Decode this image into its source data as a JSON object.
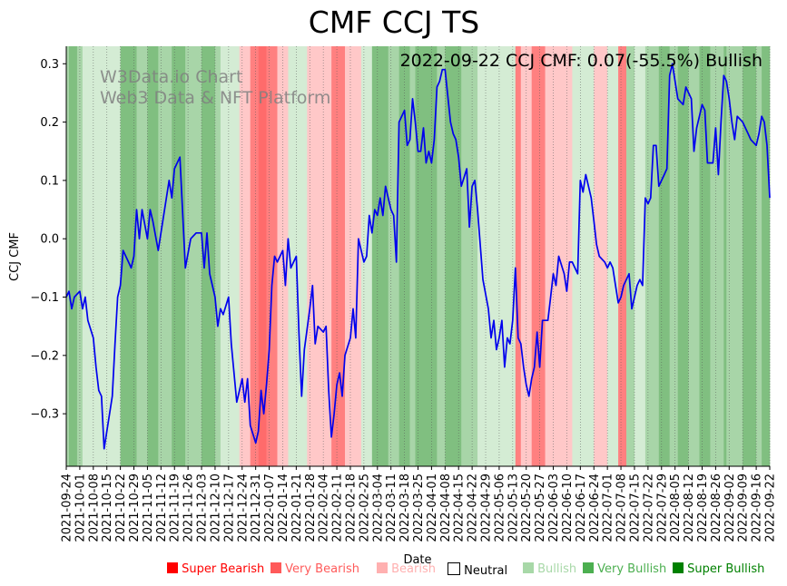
{
  "chart_data": {
    "type": "line",
    "title": "CMF CCJ TS",
    "xlabel": "Date",
    "ylabel": "CCJ CMF",
    "ylim": [
      -0.39,
      0.33
    ],
    "yticks": [
      -0.3,
      -0.2,
      -0.1,
      0.0,
      0.1,
      0.2,
      0.3
    ],
    "ytick_labels": [
      "−0.3",
      "−0.2",
      "−0.1",
      "0.0",
      "0.1",
      "0.2",
      "0.3"
    ],
    "x_start": "2021-09-24",
    "x_end": "2022-09-22",
    "xtick_labels": [
      "2021-09-24",
      "2021-10-01",
      "2021-10-08",
      "2021-10-15",
      "2021-10-22",
      "2021-10-29",
      "2021-11-05",
      "2021-11-12",
      "2021-11-19",
      "2021-11-26",
      "2021-12-03",
      "2021-12-10",
      "2021-12-17",
      "2021-12-24",
      "2021-12-31",
      "2022-01-07",
      "2022-01-14",
      "2022-01-21",
      "2022-01-28",
      "2022-02-04",
      "2022-02-11",
      "2022-02-18",
      "2022-02-25",
      "2022-03-04",
      "2022-03-11",
      "2022-03-18",
      "2022-03-25",
      "2022-04-01",
      "2022-04-08",
      "2022-04-15",
      "2022-04-22",
      "2022-04-29",
      "2022-05-06",
      "2022-05-13",
      "2022-05-20",
      "2022-05-27",
      "2022-06-03",
      "2022-06-10",
      "2022-06-17",
      "2022-06-24",
      "2022-07-01",
      "2022-07-08",
      "2022-07-15",
      "2022-07-22",
      "2022-07-29",
      "2022-08-05",
      "2022-08-12",
      "2022-08-19",
      "2022-08-26",
      "2022-09-02",
      "2022-09-09",
      "2022-09-16",
      "2022-09-22"
    ],
    "annotation": "2022-09-22 CCJ CMF: 0.07(-55.5%) Bullish",
    "watermark": [
      "W3Data.io Chart",
      "Web3 Data & NFT Platform"
    ],
    "line_color": "#0000ee",
    "series": [
      {
        "name": "CCJ CMF",
        "points": [
          [
            0,
            -0.1
          ],
          [
            1,
            -0.09
          ],
          [
            2,
            -0.12
          ],
          [
            3,
            -0.1
          ],
          [
            5,
            -0.09
          ],
          [
            6,
            -0.12
          ],
          [
            7,
            -0.1
          ],
          [
            8,
            -0.14
          ],
          [
            10,
            -0.17
          ],
          [
            11,
            -0.22
          ],
          [
            12,
            -0.26
          ],
          [
            13,
            -0.27
          ],
          [
            14,
            -0.36
          ],
          [
            16,
            -0.3
          ],
          [
            17,
            -0.27
          ],
          [
            18,
            -0.18
          ],
          [
            19,
            -0.1
          ],
          [
            20,
            -0.08
          ],
          [
            21,
            -0.02
          ],
          [
            23,
            -0.04
          ],
          [
            24,
            -0.05
          ],
          [
            25,
            -0.03
          ],
          [
            26,
            0.05
          ],
          [
            27,
            0.0
          ],
          [
            28,
            0.05
          ],
          [
            30,
            0.0
          ],
          [
            31,
            0.05
          ],
          [
            32,
            0.03
          ],
          [
            34,
            -0.02
          ],
          [
            36,
            0.04
          ],
          [
            38,
            0.1
          ],
          [
            39,
            0.07
          ],
          [
            40,
            0.12
          ],
          [
            42,
            0.14
          ],
          [
            44,
            -0.05
          ],
          [
            46,
            0.0
          ],
          [
            48,
            0.01
          ],
          [
            50,
            0.01
          ],
          [
            51,
            -0.05
          ],
          [
            52,
            0.01
          ],
          [
            53,
            -0.06
          ],
          [
            55,
            -0.1
          ],
          [
            56,
            -0.15
          ],
          [
            57,
            -0.12
          ],
          [
            58,
            -0.13
          ],
          [
            60,
            -0.1
          ],
          [
            61,
            -0.18
          ],
          [
            62,
            -0.23
          ],
          [
            63,
            -0.28
          ],
          [
            64,
            -0.26
          ],
          [
            65,
            -0.24
          ],
          [
            66,
            -0.28
          ],
          [
            67,
            -0.24
          ],
          [
            68,
            -0.32
          ],
          [
            70,
            -0.35
          ],
          [
            71,
            -0.33
          ],
          [
            72,
            -0.26
          ],
          [
            73,
            -0.3
          ],
          [
            74,
            -0.25
          ],
          [
            75,
            -0.19
          ],
          [
            76,
            -0.08
          ],
          [
            77,
            -0.03
          ],
          [
            78,
            -0.04
          ],
          [
            80,
            -0.02
          ],
          [
            81,
            -0.08
          ],
          [
            82,
            0.0
          ],
          [
            83,
            -0.05
          ],
          [
            85,
            -0.03
          ],
          [
            86,
            -0.16
          ],
          [
            87,
            -0.27
          ],
          [
            88,
            -0.19
          ],
          [
            90,
            -0.12
          ],
          [
            91,
            -0.08
          ],
          [
            92,
            -0.18
          ],
          [
            93,
            -0.15
          ],
          [
            95,
            -0.16
          ],
          [
            96,
            -0.15
          ],
          [
            97,
            -0.26
          ],
          [
            98,
            -0.34
          ],
          [
            99,
            -0.3
          ],
          [
            100,
            -0.25
          ],
          [
            101,
            -0.23
          ],
          [
            102,
            -0.27
          ],
          [
            103,
            -0.2
          ],
          [
            105,
            -0.17
          ],
          [
            106,
            -0.12
          ],
          [
            107,
            -0.17
          ],
          [
            108,
            0.0
          ],
          [
            110,
            -0.04
          ],
          [
            111,
            -0.03
          ],
          [
            112,
            0.04
          ],
          [
            113,
            0.01
          ],
          [
            114,
            0.05
          ],
          [
            115,
            0.04
          ],
          [
            116,
            0.07
          ],
          [
            117,
            0.04
          ],
          [
            118,
            0.09
          ],
          [
            120,
            0.05
          ],
          [
            121,
            0.04
          ],
          [
            122,
            -0.04
          ],
          [
            123,
            0.2
          ],
          [
            125,
            0.22
          ],
          [
            126,
            0.16
          ],
          [
            127,
            0.17
          ],
          [
            128,
            0.24
          ],
          [
            129,
            0.2
          ],
          [
            130,
            0.15
          ],
          [
            131,
            0.15
          ],
          [
            132,
            0.19
          ],
          [
            133,
            0.13
          ],
          [
            134,
            0.15
          ],
          [
            135,
            0.13
          ],
          [
            136,
            0.17
          ],
          [
            137,
            0.26
          ],
          [
            138,
            0.27
          ],
          [
            139,
            0.29
          ],
          [
            140,
            0.29
          ],
          [
            142,
            0.2
          ],
          [
            143,
            0.18
          ],
          [
            144,
            0.17
          ],
          [
            145,
            0.14
          ],
          [
            146,
            0.09
          ],
          [
            148,
            0.12
          ],
          [
            149,
            0.02
          ],
          [
            150,
            0.09
          ],
          [
            151,
            0.1
          ],
          [
            152,
            0.05
          ],
          [
            154,
            -0.07
          ],
          [
            156,
            -0.12
          ],
          [
            157,
            -0.17
          ],
          [
            158,
            -0.14
          ],
          [
            159,
            -0.19
          ],
          [
            160,
            -0.17
          ],
          [
            161,
            -0.14
          ],
          [
            162,
            -0.22
          ],
          [
            163,
            -0.17
          ],
          [
            164,
            -0.18
          ],
          [
            165,
            -0.14
          ],
          [
            166,
            -0.05
          ],
          [
            167,
            -0.17
          ],
          [
            168,
            -0.18
          ],
          [
            169,
            -0.22
          ],
          [
            170,
            -0.25
          ],
          [
            171,
            -0.27
          ],
          [
            172,
            -0.24
          ],
          [
            173,
            -0.22
          ],
          [
            174,
            -0.16
          ],
          [
            175,
            -0.22
          ],
          [
            176,
            -0.14
          ],
          [
            178,
            -0.14
          ],
          [
            179,
            -0.1
          ],
          [
            180,
            -0.06
          ],
          [
            181,
            -0.08
          ],
          [
            182,
            -0.03
          ],
          [
            184,
            -0.06
          ],
          [
            185,
            -0.09
          ],
          [
            186,
            -0.04
          ],
          [
            187,
            -0.04
          ],
          [
            188,
            -0.05
          ],
          [
            189,
            -0.06
          ],
          [
            190,
            0.1
          ],
          [
            191,
            0.08
          ],
          [
            192,
            0.11
          ],
          [
            193,
            0.09
          ],
          [
            194,
            0.07
          ],
          [
            195,
            0.03
          ],
          [
            196,
            -0.01
          ],
          [
            197,
            -0.03
          ],
          [
            199,
            -0.04
          ],
          [
            200,
            -0.05
          ],
          [
            201,
            -0.04
          ],
          [
            202,
            -0.05
          ],
          [
            203,
            -0.08
          ],
          [
            204,
            -0.11
          ],
          [
            205,
            -0.1
          ],
          [
            206,
            -0.08
          ],
          [
            208,
            -0.06
          ],
          [
            209,
            -0.12
          ],
          [
            210,
            -0.1
          ],
          [
            211,
            -0.08
          ],
          [
            212,
            -0.07
          ],
          [
            213,
            -0.08
          ],
          [
            214,
            0.07
          ],
          [
            215,
            0.06
          ],
          [
            216,
            0.07
          ],
          [
            217,
            0.16
          ],
          [
            218,
            0.16
          ],
          [
            219,
            0.09
          ],
          [
            220,
            0.1
          ],
          [
            221,
            0.11
          ],
          [
            222,
            0.12
          ],
          [
            223,
            0.28
          ],
          [
            224,
            0.3
          ],
          [
            226,
            0.24
          ],
          [
            228,
            0.23
          ],
          [
            229,
            0.26
          ],
          [
            231,
            0.24
          ],
          [
            232,
            0.15
          ],
          [
            233,
            0.19
          ],
          [
            235,
            0.23
          ],
          [
            236,
            0.22
          ],
          [
            237,
            0.13
          ],
          [
            239,
            0.13
          ],
          [
            240,
            0.19
          ],
          [
            241,
            0.11
          ],
          [
            242,
            0.2
          ],
          [
            243,
            0.28
          ],
          [
            244,
            0.27
          ],
          [
            245,
            0.24
          ],
          [
            246,
            0.2
          ],
          [
            247,
            0.17
          ],
          [
            248,
            0.21
          ],
          [
            250,
            0.2
          ],
          [
            252,
            0.18
          ],
          [
            253,
            0.17
          ],
          [
            255,
            0.16
          ],
          [
            256,
            0.18
          ],
          [
            257,
            0.21
          ],
          [
            258,
            0.2
          ],
          [
            259,
            0.16
          ],
          [
            260,
            0.07
          ]
        ]
      }
    ],
    "regime_bands": [
      [
        0,
        1,
        "Bullish"
      ],
      [
        1,
        4,
        "Very Bullish"
      ],
      [
        4,
        6,
        "Bullish"
      ],
      [
        6,
        20,
        "Neutral"
      ],
      [
        20,
        26,
        "Very Bullish"
      ],
      [
        26,
        30,
        "Bullish"
      ],
      [
        30,
        34,
        "Very Bullish"
      ],
      [
        34,
        39,
        "Bullish"
      ],
      [
        39,
        44,
        "Very Bullish"
      ],
      [
        44,
        50,
        "Bullish"
      ],
      [
        50,
        55,
        "Very Bullish"
      ],
      [
        55,
        57,
        "Bullish"
      ],
      [
        57,
        64,
        "Neutral"
      ],
      [
        64,
        68,
        "Bearish"
      ],
      [
        68,
        71,
        "Very Bearish"
      ],
      [
        71,
        74,
        "Super Bearish"
      ],
      [
        74,
        78,
        "Very Bearish"
      ],
      [
        78,
        82,
        "Bearish"
      ],
      [
        82,
        89,
        "Neutral"
      ],
      [
        89,
        92,
        "Bearish"
      ],
      [
        92,
        98,
        "Bearish"
      ],
      [
        98,
        103,
        "Very Bearish"
      ],
      [
        103,
        109,
        "Bearish"
      ],
      [
        109,
        113,
        "Neutral"
      ],
      [
        113,
        119,
        "Very Bullish"
      ],
      [
        119,
        123,
        "Bullish"
      ],
      [
        123,
        127,
        "Very Bullish"
      ],
      [
        127,
        129,
        "Bullish"
      ],
      [
        129,
        137,
        "Very Bullish"
      ],
      [
        137,
        140,
        "Bullish"
      ],
      [
        140,
        146,
        "Very Bullish"
      ],
      [
        146,
        152,
        "Bullish"
      ],
      [
        152,
        159,
        "Neutral"
      ],
      [
        159,
        166,
        "Neutral"
      ],
      [
        166,
        168,
        "Very Bearish"
      ],
      [
        168,
        172,
        "Bearish"
      ],
      [
        172,
        177,
        "Very Bearish"
      ],
      [
        177,
        187,
        "Bearish"
      ],
      [
        187,
        195,
        "Neutral"
      ],
      [
        195,
        200,
        "Bearish"
      ],
      [
        200,
        204,
        "Neutral"
      ],
      [
        204,
        207,
        "Very Bearish"
      ],
      [
        207,
        210,
        "Bullish"
      ],
      [
        210,
        214,
        "Neutral"
      ],
      [
        214,
        219,
        "Bullish"
      ],
      [
        219,
        223,
        "Very Bullish"
      ],
      [
        223,
        226,
        "Bullish"
      ],
      [
        226,
        230,
        "Very Bullish"
      ],
      [
        230,
        234,
        "Bullish"
      ],
      [
        234,
        238,
        "Very Bullish"
      ],
      [
        238,
        243,
        "Bullish"
      ],
      [
        243,
        244,
        "Very Bullish"
      ],
      [
        244,
        250,
        "Bullish"
      ],
      [
        250,
        255,
        "Very Bullish"
      ],
      [
        255,
        257,
        "Bullish"
      ],
      [
        257,
        260,
        "Very Bullish"
      ]
    ],
    "legend": [
      {
        "label": "Super Bearish",
        "color": "#ff0000"
      },
      {
        "label": "Very Bearish",
        "color": "#ff5a5a"
      },
      {
        "label": "Bearish",
        "color": "#ffb0b0"
      },
      {
        "label": "Neutral",
        "color": "#ffffff"
      },
      {
        "label": "Bullish",
        "color": "#a8d8a8"
      },
      {
        "label": "Very Bullish",
        "color": "#4caf50"
      },
      {
        "label": "Super Bullish",
        "color": "#008000"
      }
    ],
    "band_colors": {
      "Super Bearish": "#ff6b6b",
      "Very Bearish": "#ff8080",
      "Bearish": "#ffc8c8",
      "Neutral": "#d4ecd4",
      "Bullish": "#a8d5a8",
      "Very Bullish": "#80bf80",
      "Super Bullish": "#4a9a4a"
    }
  }
}
